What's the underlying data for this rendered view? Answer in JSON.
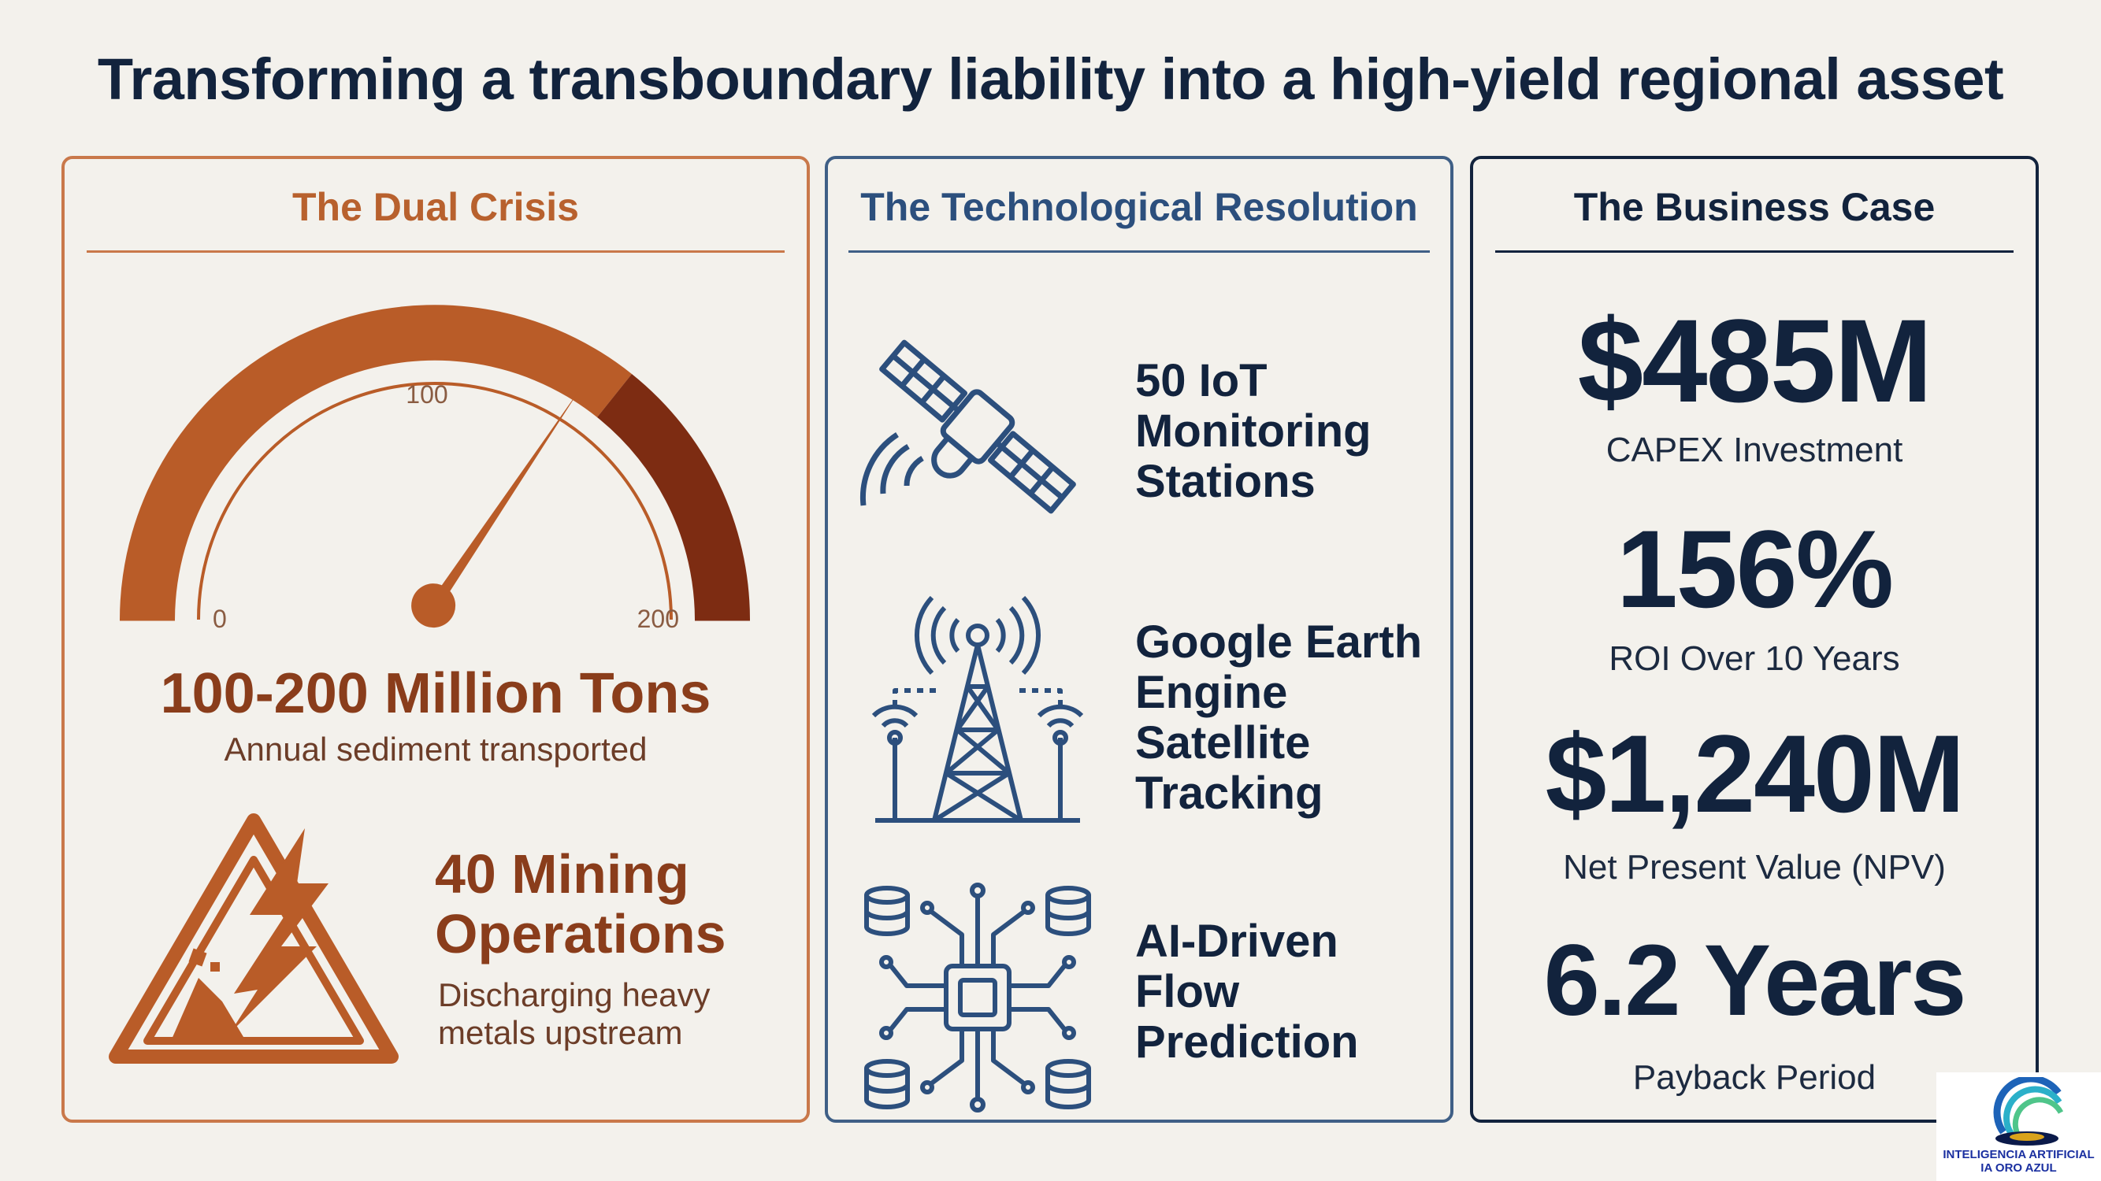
{
  "title": "Transforming a transboundary liability into a high-yield regional asset",
  "crisis": {
    "title": "The Dual Crisis",
    "gauge": {
      "min_label": "0",
      "mid_label": "100",
      "max_label": "200",
      "needle_value": 140
    },
    "sediment_value": "100-200 Million Tons",
    "sediment_label": "Annual sediment transported",
    "mining_value_line1": "40 Mining",
    "mining_value_line2": "Operations",
    "mining_label_line1": "Discharging heavy",
    "mining_label_line2": "metals upstream",
    "icons": {
      "gauge": "gauge-icon",
      "hazard": "hazard-warning-icon"
    }
  },
  "tech": {
    "title": "The Technological Resolution",
    "items": [
      {
        "icon": "satellite-icon",
        "line1": "50 IoT",
        "line2": "Monitoring",
        "line3": "Stations"
      },
      {
        "icon": "radio-tower-icon",
        "line1": "Google Earth",
        "line2": "Engine",
        "line3": "Satellite",
        "line4": "Tracking"
      },
      {
        "icon": "ai-chip-icon",
        "line1": "AI-Driven",
        "line2": "Flow",
        "line3": "Prediction"
      }
    ]
  },
  "business": {
    "title": "The Business Case",
    "metrics": [
      {
        "value": "$485M",
        "label": "CAPEX Investment"
      },
      {
        "value": "156%",
        "label": "ROI Over 10 Years"
      },
      {
        "value": "$1,240M",
        "label": "Net Present Value (NPV)"
      },
      {
        "value": "6.2 Years",
        "label": "Payback Period"
      }
    ]
  },
  "logo": {
    "line1": "INTELIGENCIA ARTIFICIAL",
    "line2": "IA ORO AZUL"
  },
  "colors": {
    "crisis": "#b8612e",
    "tech": "#2c4f7d",
    "business": "#12233d",
    "background": "#f3f1ec"
  }
}
